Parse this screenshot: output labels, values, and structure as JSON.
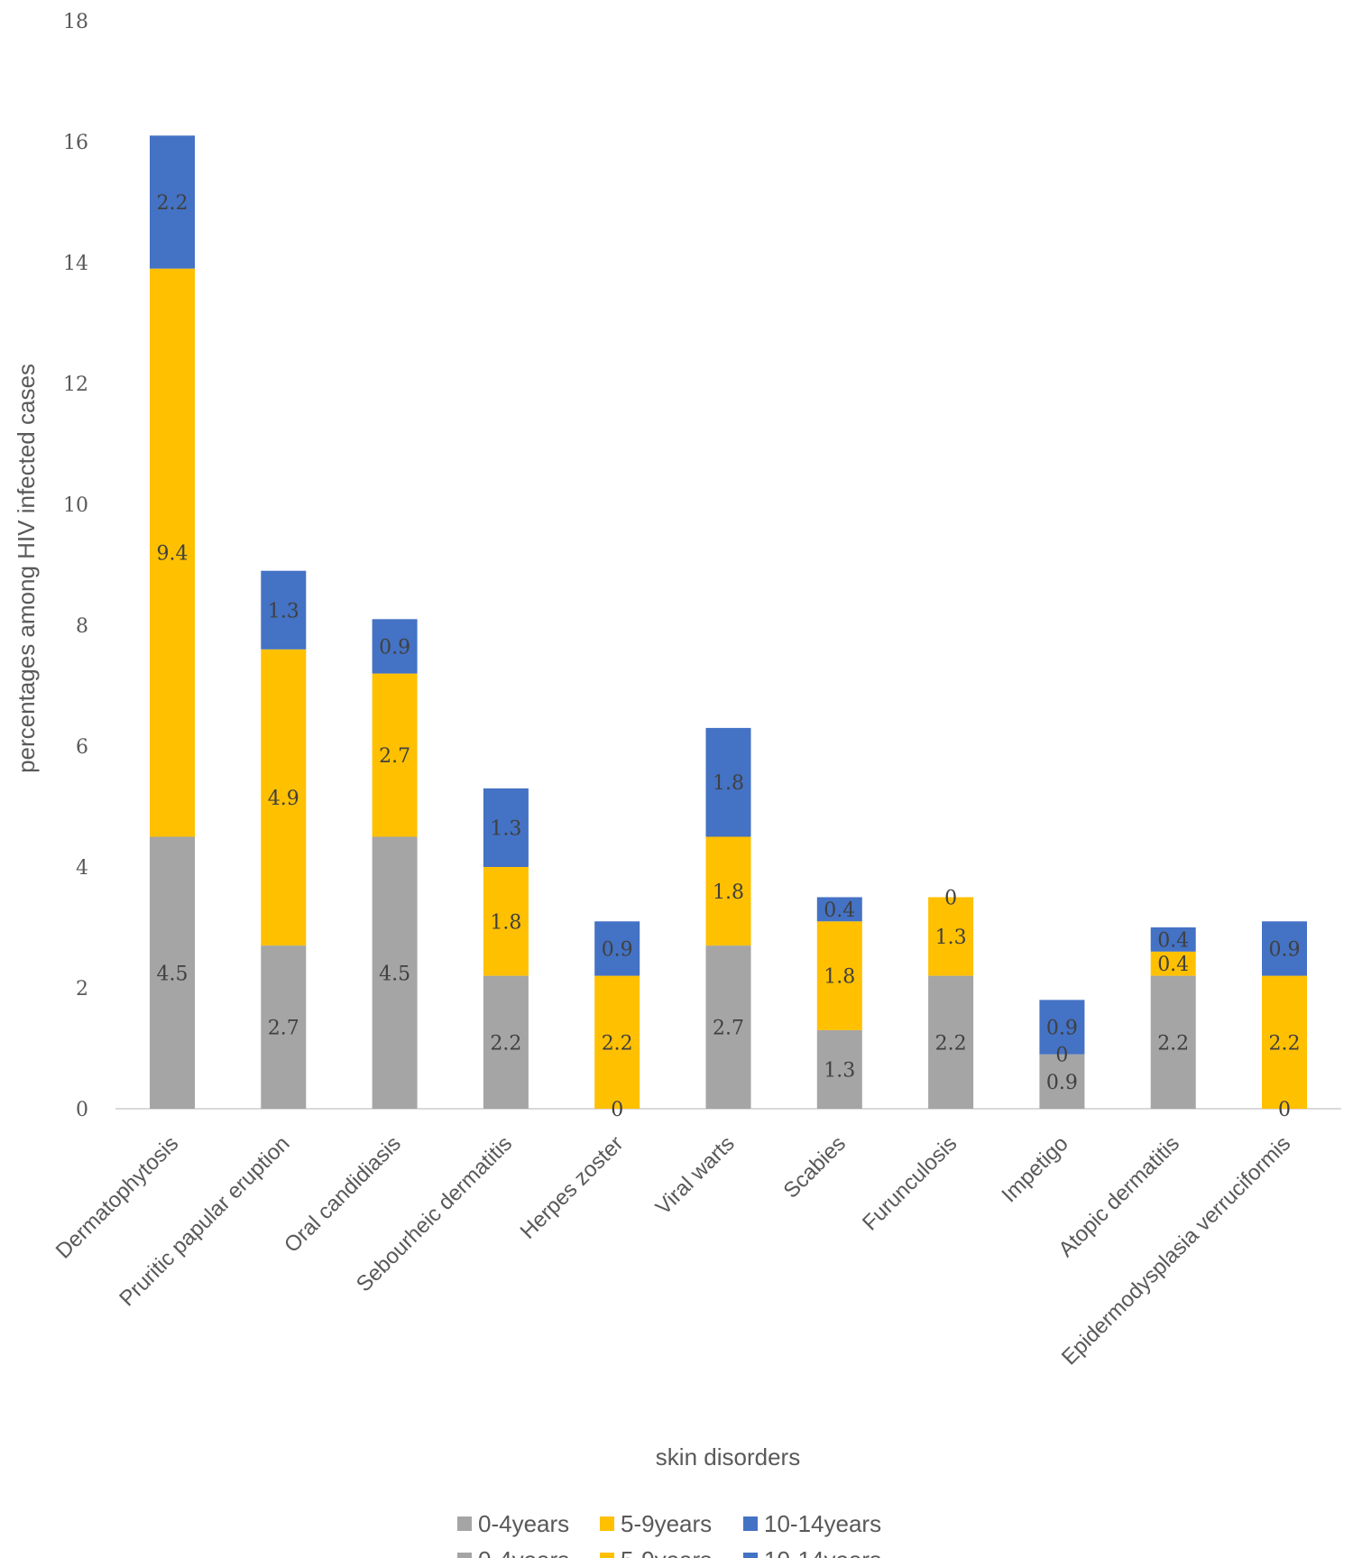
{
  "chart_data": {
    "type": "bar",
    "stacked": true,
    "title": "",
    "xlabel": "skin disorders",
    "ylabel": "percentages among HIV infected cases",
    "ylim": [
      0,
      18
    ],
    "yticks": [
      0,
      2,
      4,
      6,
      8,
      10,
      12,
      14,
      16,
      18
    ],
    "grid": false,
    "legend_position": "bottom",
    "categories": [
      "Dermatophytosis",
      "Pruritic papular eruption",
      "Oral candidiasis",
      "Sebourheic dermatitis",
      "Herpes zoster",
      "Viral warts",
      "Scabies",
      "Furunculosis",
      "Impetigo",
      "Atopic dermatitis",
      "Epidermodysplasia verruciformis"
    ],
    "series": [
      {
        "name": "0-4years",
        "color": "#A5A5A5",
        "values": [
          4.5,
          2.7,
          4.5,
          2.2,
          0,
          2.7,
          1.3,
          2.2,
          0.9,
          2.2,
          0
        ]
      },
      {
        "name": "5-9years",
        "color": "#FFC000",
        "values": [
          9.4,
          4.9,
          2.7,
          1.8,
          2.2,
          1.8,
          1.8,
          1.3,
          0,
          0.4,
          2.2
        ]
      },
      {
        "name": "10-14years",
        "color": "#4472C4",
        "values": [
          2.2,
          1.3,
          0.9,
          1.3,
          0.9,
          1.8,
          0.4,
          0,
          0.9,
          0.4,
          0.9
        ]
      }
    ]
  }
}
